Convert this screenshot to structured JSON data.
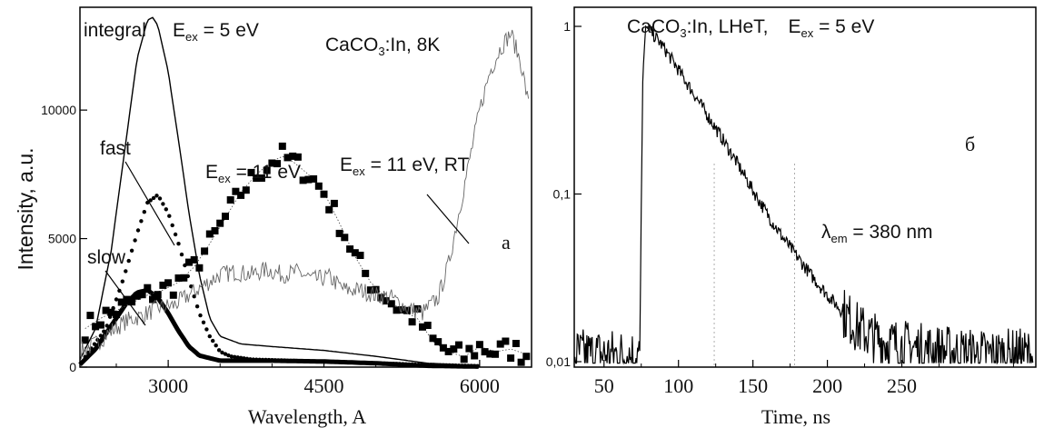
{
  "chart_data": [
    {
      "type": "line",
      "panel_letter": "a",
      "sample_label": "CaCO3:In, 8K",
      "sample_label_parts": {
        "pre": "CaCO",
        "sub": "3",
        "post": ":In,  8K"
      },
      "ylabel": "Intensity, a.u.",
      "xlabel": "Wavelength, A",
      "xlim": [
        2150,
        6500
      ],
      "ylim": [
        0,
        14000
      ],
      "x_ticks": [
        3000,
        4500,
        6000
      ],
      "y_ticks": [
        0,
        5000,
        10000
      ],
      "grid": false,
      "annotations": [
        {
          "text": "integral",
          "target": "integral"
        },
        {
          "text": "fast",
          "target": "fast"
        },
        {
          "text": "slow",
          "target": "slow"
        },
        {
          "text": "E_ex = 5 eV",
          "parts": {
            "pre": "E",
            "sub": "ex",
            "post": " = 5 eV"
          }
        },
        {
          "text": "E_ex = 11 eV",
          "parts": {
            "pre": "E",
            "sub": "ex",
            "post": " = 11 eV"
          }
        },
        {
          "text": "E_ex = 11 eV, RT",
          "parts": {
            "pre": "E",
            "sub": "ex",
            "post": " = 11 eV, RT"
          }
        }
      ],
      "series": [
        {
          "key": "integral",
          "style": "line",
          "x": [
            2150,
            2300,
            2450,
            2600,
            2700,
            2800,
            2850,
            2900,
            3000,
            3100,
            3200,
            3300,
            3400,
            3500,
            3700,
            4000,
            4500,
            5000,
            5500,
            6000
          ],
          "y": [
            300,
            1500,
            4500,
            9000,
            12000,
            13500,
            13600,
            13300,
            11500,
            8800,
            6000,
            3600,
            1900,
            1200,
            900,
            800,
            650,
            420,
            150,
            60
          ]
        },
        {
          "key": "fast",
          "style": "dots",
          "x": [
            2200,
            2400,
            2550,
            2700,
            2800,
            2900,
            3000,
            3100,
            3200,
            3300,
            3400,
            3500,
            3600,
            3800,
            4200,
            4800,
            5400,
            6000
          ],
          "y": [
            400,
            1500,
            3200,
            5200,
            6400,
            6700,
            6000,
            4800,
            3400,
            2100,
            1200,
            600,
            420,
            300,
            250,
            180,
            100,
            40
          ]
        },
        {
          "key": "slow",
          "style": "thick",
          "x": [
            2150,
            2300,
            2450,
            2600,
            2700,
            2800,
            2900,
            3000,
            3100,
            3200,
            3300,
            3500,
            4000,
            4500,
            5000,
            5500,
            6000
          ],
          "y": [
            100,
            700,
            1600,
            2500,
            2900,
            3000,
            2700,
            2100,
            1400,
            800,
            450,
            250,
            250,
            220,
            150,
            50,
            20
          ]
        },
        {
          "key": "e11",
          "style": "squares",
          "x": [
            2200,
            2350,
            2500,
            2650,
            2800,
            2950,
            3100,
            3250,
            3400,
            3550,
            3700,
            3850,
            4000,
            4100,
            4200,
            4350,
            4500,
            4650,
            4800,
            4950,
            5100,
            5250,
            5400,
            5550,
            5700,
            5850,
            6000,
            6150,
            6300,
            6450
          ],
          "y": [
            1500,
            1900,
            2200,
            2500,
            2800,
            3000,
            3300,
            3900,
            4800,
            5800,
            6800,
            7500,
            8000,
            8200,
            8000,
            7500,
            6800,
            5600,
            4300,
            3300,
            2700,
            2200,
            1900,
            1000,
            600,
            400,
            800,
            600,
            700,
            500
          ]
        },
        {
          "key": "rt",
          "style": "thin",
          "x": [
            2150,
            2300,
            2450,
            2600,
            2750,
            2900,
            3050,
            3200,
            3350,
            3500,
            3650,
            3800,
            3950,
            4100,
            4250,
            4400,
            4550,
            4700,
            4850,
            5000,
            5150,
            5300,
            5450,
            5600,
            5700,
            5800,
            5900,
            6000,
            6100,
            6200,
            6300,
            6400,
            6480
          ],
          "y": [
            600,
            900,
            1400,
            1800,
            2000,
            2300,
            2400,
            2800,
            3200,
            3600,
            3700,
            3600,
            3800,
            3600,
            3700,
            3400,
            3500,
            3000,
            3000,
            2800,
            2700,
            2300,
            2100,
            2700,
            4000,
            6000,
            8000,
            10000,
            11500,
            12400,
            13000,
            11800,
            10000
          ]
        }
      ]
    },
    {
      "type": "line",
      "panel_letter": "б",
      "sample_label": "CaCO3:In, LHeT, E_ex = 5 eV",
      "sample_label_parts": {
        "pre": "CaCO",
        "sub": "3",
        "post": ":In, LHeT,",
        "e_pre": "E",
        "e_sub": "ex",
        "e_post": " = 5 eV"
      },
      "xlabel": "Time,  ns",
      "ylabel": "",
      "scale_y": "log",
      "xlim": [
        30,
        340
      ],
      "ylim": [
        0.01,
        1.3
      ],
      "x_ticks": [
        50,
        100,
        150,
        200,
        250
      ],
      "y_ticks": [
        0.01,
        0.1,
        1
      ],
      "y_tick_labels": [
        "0,01",
        "0,1",
        "1"
      ],
      "grid": false,
      "annotation": {
        "text": "λ_em = 380 nm",
        "parts": {
          "pre": "λ",
          "sub": "em",
          "post": " = 380 nm"
        }
      },
      "series": [
        {
          "key": "decay",
          "style": "line",
          "x": [
            30,
            60,
            74,
            76,
            78,
            82,
            90,
            100,
            110,
            120,
            130,
            140,
            150,
            160,
            170,
            180,
            190,
            200,
            210,
            220,
            230,
            240,
            260,
            280,
            300,
            320,
            338
          ],
          "y": [
            0.011,
            0.011,
            0.011,
            0.5,
            1.0,
            0.92,
            0.75,
            0.55,
            0.4,
            0.29,
            0.21,
            0.15,
            0.105,
            0.075,
            0.055,
            0.042,
            0.032,
            0.025,
            0.02,
            0.016,
            0.014,
            0.013,
            0.012,
            0.0115,
            0.011,
            0.011,
            0.011
          ]
        }
      ]
    }
  ]
}
